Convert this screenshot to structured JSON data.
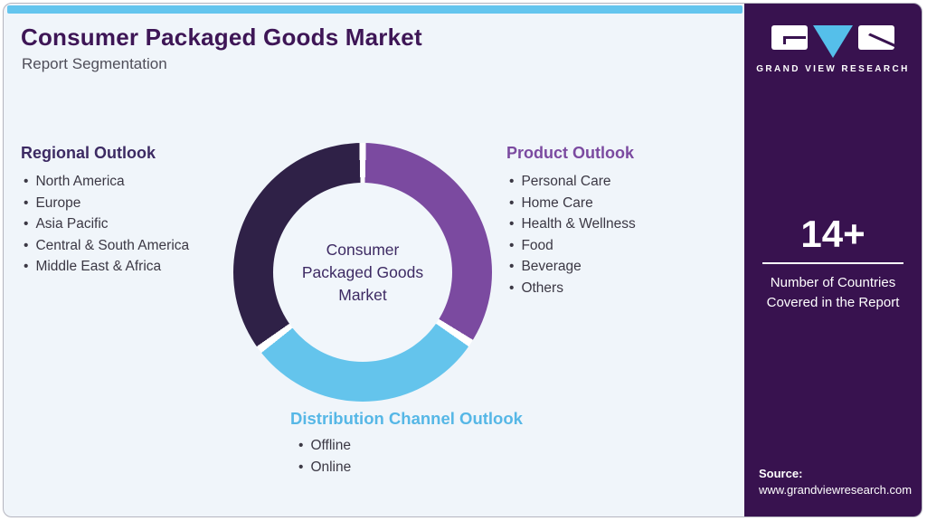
{
  "header": {
    "title": "Consumer Packaged Goods Market",
    "subtitle": "Report Segmentation"
  },
  "chart_data": {
    "type": "pie",
    "subtype": "donut",
    "title": "Consumer Packaged Goods Market Report Segmentation",
    "center_label": "Consumer Packaged Goods Market",
    "center_label_lines": [
      "Consumer",
      "Packaged Goods",
      "Market"
    ],
    "gap_color": "#ffffff",
    "legend_position": "around-chart",
    "segments": [
      {
        "label": "Product Outlook",
        "color": "#7b4aa0",
        "start_deg": 1.5,
        "end_deg": 121.5,
        "approx_share_pct": 33
      },
      {
        "label": "Distribution Channel Outlook",
        "color": "#64c4ec",
        "start_deg": 125,
        "end_deg": 231.5,
        "approx_share_pct": 30
      },
      {
        "label": "Regional Outlook",
        "color": "#2f2147",
        "start_deg": 235,
        "end_deg": 358.5,
        "approx_share_pct": 34
      }
    ]
  },
  "sections": {
    "regional": {
      "title": "Regional Outlook",
      "color": "#3c2a63",
      "items": [
        "North America",
        "Europe",
        "Asia Pacific",
        "Central & South America",
        "Middle East & Africa"
      ]
    },
    "product": {
      "title": "Product Outlook",
      "color": "#7b4aa0",
      "items": [
        "Personal Care",
        "Home Care",
        "Health & Wellness",
        "Food",
        "Beverage",
        "Others"
      ]
    },
    "distribution": {
      "title": "Distribution Channel Outlook",
      "color": "#56b7e6",
      "items": [
        "Offline",
        "Online"
      ]
    }
  },
  "sidebar": {
    "logo_text": "GRAND VIEW RESEARCH",
    "stat_value": "14+",
    "stat_label": "Number of Countries Covered in the Report",
    "stat_label_lines": [
      "Number of Countries",
      "Covered in the Report"
    ],
    "source_label": "Source:",
    "source_url": "www.grandviewresearch.com",
    "bg_color": "#38124f",
    "logo_accent_blue": "#55bfea"
  },
  "theme": {
    "card_bg": "#f0f5fa",
    "topbar_color": "#64c5ee",
    "title_color": "#3e1656",
    "body_text_color": "#3b3844"
  }
}
